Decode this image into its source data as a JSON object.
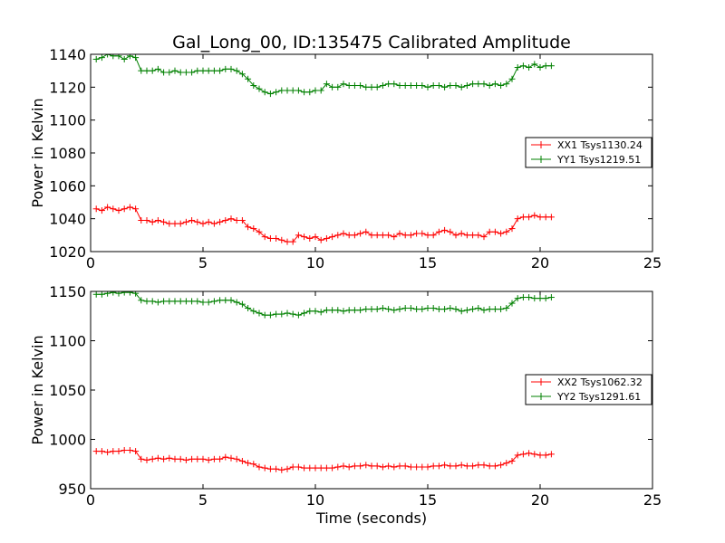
{
  "chart_data": [
    {
      "type": "line",
      "title": "Gal_Long_00, ID:135475 Calibrated Amplitude",
      "xlabel": "",
      "ylabel": "Power in Kelvin",
      "xlim": [
        0,
        25
      ],
      "ylim": [
        1020,
        1140
      ],
      "xticks": [
        "0",
        "5",
        "10",
        "15",
        "20",
        "25"
      ],
      "yticks": [
        "1020",
        "1040",
        "1060",
        "1080",
        "1100",
        "1120",
        "1140"
      ],
      "legend_position": "right",
      "series": [
        {
          "name": "XX1 Tsys1130.24",
          "color": "#ff0000",
          "x": [
            0.25,
            0.5,
            0.75,
            1.0,
            1.25,
            1.5,
            1.75,
            2.0,
            2.25,
            2.5,
            2.75,
            3.0,
            3.25,
            3.5,
            3.75,
            4.0,
            4.25,
            4.5,
            4.75,
            5.0,
            5.25,
            5.5,
            5.75,
            6.0,
            6.25,
            6.5,
            6.75,
            7.0,
            7.25,
            7.5,
            7.75,
            8.0,
            8.25,
            8.5,
            8.75,
            9.0,
            9.25,
            9.5,
            9.75,
            10.0,
            10.25,
            10.5,
            10.75,
            11.0,
            11.25,
            11.5,
            11.75,
            12.0,
            12.25,
            12.5,
            12.75,
            13.0,
            13.25,
            13.5,
            13.75,
            14.0,
            14.25,
            14.5,
            14.75,
            15.0,
            15.25,
            15.5,
            15.75,
            16.0,
            16.25,
            16.5,
            16.75,
            17.0,
            17.25,
            17.5,
            17.75,
            18.0,
            18.25,
            18.5,
            18.75,
            19.0,
            19.25,
            19.5,
            19.75,
            20.0,
            20.25,
            20.5
          ],
          "values": [
            1046,
            1045,
            1047,
            1046,
            1045,
            1046,
            1047,
            1046,
            1039,
            1039,
            1038,
            1039,
            1038,
            1037,
            1037,
            1037,
            1038,
            1039,
            1038,
            1037,
            1038,
            1037,
            1038,
            1039,
            1040,
            1039,
            1039,
            1035,
            1034,
            1032,
            1029,
            1028,
            1028,
            1027,
            1026,
            1026,
            1030,
            1029,
            1028,
            1029,
            1027,
            1028,
            1029,
            1030,
            1031,
            1030,
            1030,
            1031,
            1032,
            1030,
            1030,
            1030,
            1030,
            1029,
            1031,
            1030,
            1030,
            1031,
            1031,
            1030,
            1030,
            1032,
            1033,
            1032,
            1030,
            1031,
            1030,
            1030,
            1030,
            1029,
            1032,
            1032,
            1031,
            1032,
            1034,
            1040,
            1041,
            1041,
            1042,
            1041,
            1041,
            1041
          ]
        },
        {
          "name": "YY1 Tsys1219.51",
          "color": "#008000",
          "x": [
            0.25,
            0.5,
            0.75,
            1.0,
            1.25,
            1.5,
            1.75,
            2.0,
            2.25,
            2.5,
            2.75,
            3.0,
            3.25,
            3.5,
            3.75,
            4.0,
            4.25,
            4.5,
            4.75,
            5.0,
            5.25,
            5.5,
            5.75,
            6.0,
            6.25,
            6.5,
            6.75,
            7.0,
            7.25,
            7.5,
            7.75,
            8.0,
            8.25,
            8.5,
            8.75,
            9.0,
            9.25,
            9.5,
            9.75,
            10.0,
            10.25,
            10.5,
            10.75,
            11.0,
            11.25,
            11.5,
            11.75,
            12.0,
            12.25,
            12.5,
            12.75,
            13.0,
            13.25,
            13.5,
            13.75,
            14.0,
            14.25,
            14.5,
            14.75,
            15.0,
            15.25,
            15.5,
            15.75,
            16.0,
            16.25,
            16.5,
            16.75,
            17.0,
            17.25,
            17.5,
            17.75,
            18.0,
            18.25,
            18.5,
            18.75,
            19.0,
            19.25,
            19.5,
            19.75,
            20.0,
            20.25,
            20.5
          ],
          "values": [
            1137,
            1138,
            1140,
            1139,
            1139,
            1137,
            1139,
            1138,
            1130,
            1130,
            1130,
            1131,
            1129,
            1129,
            1130,
            1129,
            1129,
            1129,
            1130,
            1130,
            1130,
            1130,
            1130,
            1131,
            1131,
            1130,
            1128,
            1125,
            1121,
            1119,
            1117,
            1116,
            1117,
            1118,
            1118,
            1118,
            1118,
            1117,
            1117,
            1118,
            1118,
            1122,
            1120,
            1120,
            1122,
            1121,
            1121,
            1121,
            1120,
            1120,
            1120,
            1121,
            1122,
            1122,
            1121,
            1121,
            1121,
            1121,
            1121,
            1120,
            1121,
            1121,
            1120,
            1121,
            1121,
            1120,
            1121,
            1122,
            1122,
            1122,
            1121,
            1122,
            1121,
            1122,
            1125,
            1132,
            1133,
            1132,
            1134,
            1132,
            1133,
            1133
          ]
        }
      ]
    },
    {
      "type": "line",
      "title": "",
      "xlabel": "Time (seconds)",
      "ylabel": "Power in Kelvin",
      "xlim": [
        0,
        25
      ],
      "ylim": [
        950,
        1150
      ],
      "xticks": [
        "0",
        "5",
        "10",
        "15",
        "20",
        "25"
      ],
      "yticks": [
        "950",
        "1000",
        "1050",
        "1100",
        "1150"
      ],
      "legend_position": "right",
      "series": [
        {
          "name": "XX2 Tsys1062.32",
          "color": "#ff0000",
          "x": [
            0.25,
            0.5,
            0.75,
            1.0,
            1.25,
            1.5,
            1.75,
            2.0,
            2.25,
            2.5,
            2.75,
            3.0,
            3.25,
            3.5,
            3.75,
            4.0,
            4.25,
            4.5,
            4.75,
            5.0,
            5.25,
            5.5,
            5.75,
            6.0,
            6.25,
            6.5,
            6.75,
            7.0,
            7.25,
            7.5,
            7.75,
            8.0,
            8.25,
            8.5,
            8.75,
            9.0,
            9.25,
            9.5,
            9.75,
            10.0,
            10.25,
            10.5,
            10.75,
            11.0,
            11.25,
            11.5,
            11.75,
            12.0,
            12.25,
            12.5,
            12.75,
            13.0,
            13.25,
            13.5,
            13.75,
            14.0,
            14.25,
            14.5,
            14.75,
            15.0,
            15.25,
            15.5,
            15.75,
            16.0,
            16.25,
            16.5,
            16.75,
            17.0,
            17.25,
            17.5,
            17.75,
            18.0,
            18.25,
            18.5,
            18.75,
            19.0,
            19.25,
            19.5,
            19.75,
            20.0,
            20.25,
            20.5
          ],
          "values": [
            988,
            988,
            987,
            988,
            988,
            989,
            989,
            988,
            980,
            979,
            980,
            981,
            980,
            981,
            980,
            980,
            979,
            980,
            980,
            980,
            979,
            980,
            980,
            982,
            981,
            980,
            978,
            976,
            975,
            972,
            971,
            970,
            970,
            969,
            970,
            972,
            972,
            971,
            971,
            971,
            971,
            971,
            971,
            972,
            973,
            972,
            973,
            973,
            974,
            973,
            973,
            972,
            973,
            972,
            973,
            973,
            972,
            972,
            972,
            972,
            973,
            973,
            974,
            973,
            973,
            974,
            973,
            973,
            974,
            974,
            973,
            973,
            974,
            976,
            978,
            984,
            985,
            986,
            985,
            984,
            984,
            985
          ]
        },
        {
          "name": "YY2 Tsys1291.61",
          "color": "#008000",
          "x": [
            0.25,
            0.5,
            0.75,
            1.0,
            1.25,
            1.5,
            1.75,
            2.0,
            2.25,
            2.5,
            2.75,
            3.0,
            3.25,
            3.5,
            3.75,
            4.0,
            4.25,
            4.5,
            4.75,
            5.0,
            5.25,
            5.5,
            5.75,
            6.0,
            6.25,
            6.5,
            6.75,
            7.0,
            7.25,
            7.5,
            7.75,
            8.0,
            8.25,
            8.5,
            8.75,
            9.0,
            9.25,
            9.5,
            9.75,
            10.0,
            10.25,
            10.5,
            10.75,
            11.0,
            11.25,
            11.5,
            11.75,
            12.0,
            12.25,
            12.5,
            12.75,
            13.0,
            13.25,
            13.5,
            13.75,
            14.0,
            14.25,
            14.5,
            14.75,
            15.0,
            15.25,
            15.5,
            15.75,
            16.0,
            16.25,
            16.5,
            16.75,
            17.0,
            17.25,
            17.5,
            17.75,
            18.0,
            18.25,
            18.5,
            18.75,
            19.0,
            19.25,
            19.5,
            19.75,
            20.0,
            20.25,
            20.5
          ],
          "values": [
            1147,
            1147,
            1148,
            1149,
            1148,
            1149,
            1149,
            1148,
            1141,
            1140,
            1140,
            1139,
            1140,
            1140,
            1140,
            1140,
            1140,
            1140,
            1140,
            1139,
            1139,
            1140,
            1141,
            1141,
            1141,
            1139,
            1137,
            1133,
            1130,
            1128,
            1126,
            1126,
            1127,
            1127,
            1128,
            1127,
            1126,
            1128,
            1130,
            1130,
            1129,
            1131,
            1131,
            1131,
            1130,
            1131,
            1131,
            1131,
            1132,
            1132,
            1132,
            1133,
            1132,
            1131,
            1132,
            1133,
            1133,
            1132,
            1132,
            1133,
            1133,
            1132,
            1132,
            1133,
            1132,
            1130,
            1131,
            1132,
            1133,
            1131,
            1132,
            1132,
            1132,
            1133,
            1138,
            1143,
            1144,
            1144,
            1143,
            1143,
            1143,
            1144
          ]
        }
      ]
    }
  ]
}
